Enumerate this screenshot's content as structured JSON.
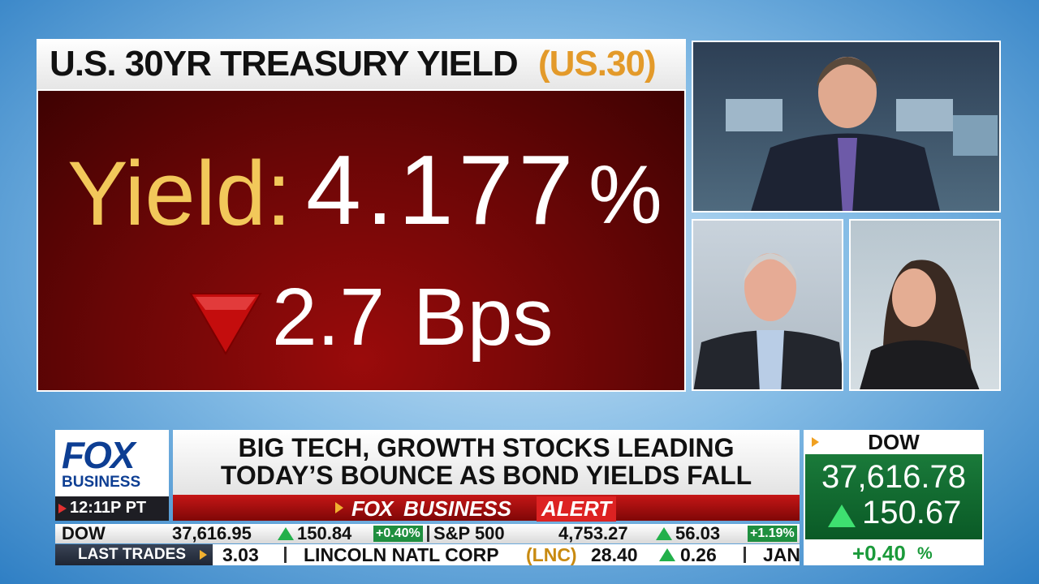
{
  "graphic": {
    "title": "U.S. 30YR TREASURY YIELD",
    "symbol": "(US.30)",
    "yield_label": "Yield:",
    "yield_value": "4.177",
    "yield_unit": "%",
    "change_value": "2.7",
    "change_unit": "Bps"
  },
  "logo": {
    "brand": "FOX",
    "sub": "BUSINESS",
    "time": "12:11P PT"
  },
  "headline": {
    "lines": [
      "BIG TECH, GROWTH STOCKS LEADING",
      "TODAY’S BOUNCE AS BOND YIELDS FALL"
    ]
  },
  "alert": {
    "brand": "FOX",
    "sub": "BUSINESS",
    "word": "ALERT"
  },
  "dow_box": {
    "label": "DOW",
    "value": "37,616.78",
    "change": "150.67",
    "percent": "+0.40",
    "percent_unit": "%"
  },
  "ticker": {
    "indices": [
      {
        "name": "DOW",
        "value": "37,616.95",
        "change": "150.84",
        "percent": "+0.40%"
      },
      {
        "name": "S&P 500",
        "value": "4,753.27",
        "change": "56.03",
        "percent": "+1.19%"
      }
    ],
    "last_trades": {
      "label": "LAST TRADES",
      "items": [
        "3.03",
        "LINCOLN NATL CORP",
        "(LNC)",
        "28.40",
        "0.26",
        "JAN"
      ]
    }
  }
}
